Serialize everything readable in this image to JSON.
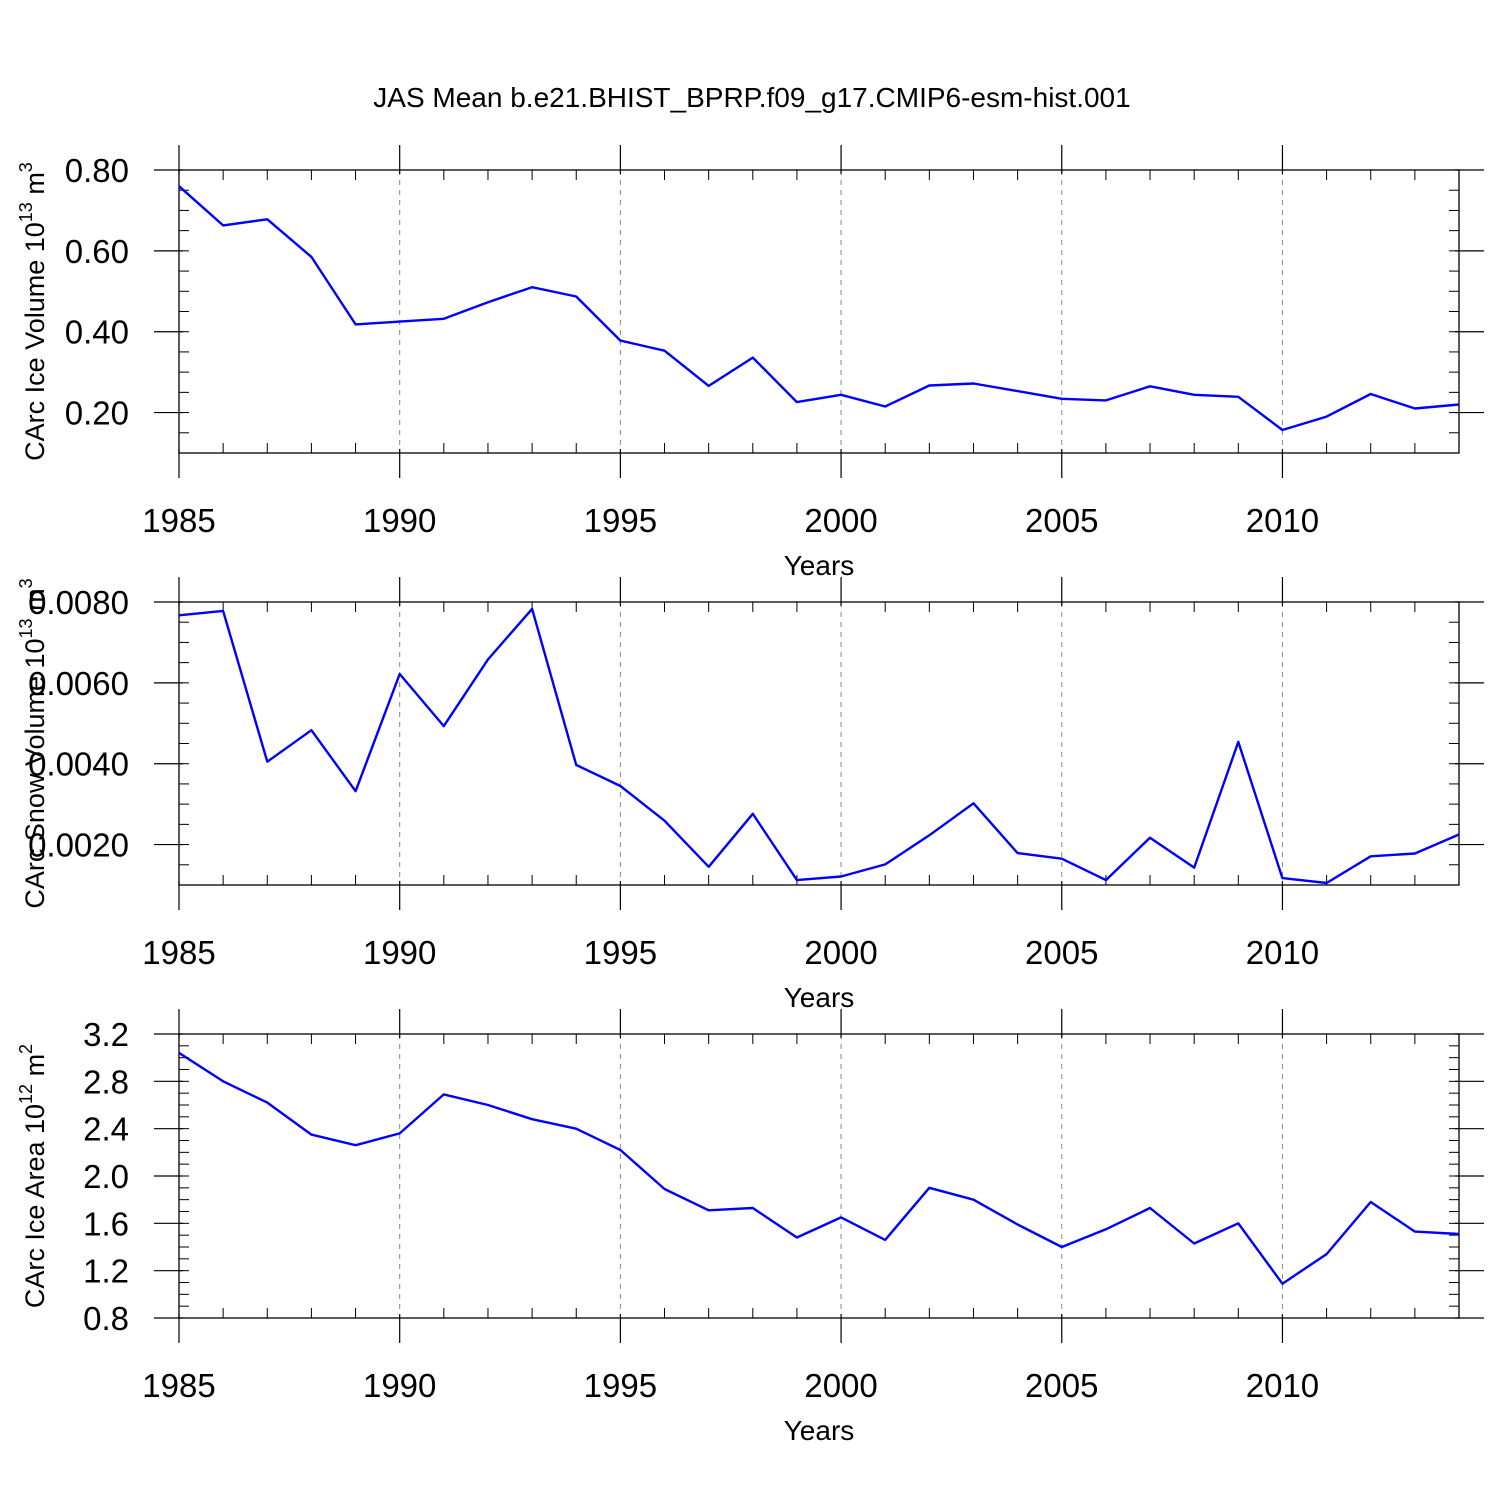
{
  "title": "JAS Mean b.e21.BHIST_BPRP.f09_g17.CMIP6-esm-hist.001",
  "colors": {
    "line": "#0000ff",
    "axis": "#000000",
    "grid": "#888888"
  },
  "chart_data": [
    {
      "type": "line",
      "id": "ice-volume",
      "ylabel": "CArc Ice Volume 10",
      "ylabel_exp": "13",
      "ylabel_unit": " m",
      "ylabel_unit_exp": "3",
      "xlabel": "Years",
      "xlim": [
        1985,
        2014
      ],
      "ylim": [
        0.1,
        0.8
      ],
      "yticks": [
        0.2,
        0.4,
        0.6,
        0.8
      ],
      "ytick_labels": [
        "0.20",
        "0.40",
        "0.60",
        "0.80"
      ],
      "xticks": [
        1985,
        1990,
        1995,
        2000,
        2005,
        2010
      ],
      "xtick_labels": [
        "1985",
        "1990",
        "1995",
        "2000",
        "2005",
        "2010"
      ],
      "x": [
        1985,
        1986,
        1987,
        1988,
        1989,
        1990,
        1991,
        1992,
        1993,
        1994,
        1995,
        1996,
        1997,
        1998,
        1999,
        2000,
        2001,
        2002,
        2003,
        2004,
        2005,
        2006,
        2007,
        2008,
        2009,
        2010,
        2011,
        2012,
        2013,
        2014
      ],
      "series": [
        {
          "name": "CArc Ice Volume",
          "values": [
            0.76,
            0.663,
            0.678,
            0.585,
            0.418,
            0.425,
            0.432,
            0.473,
            0.51,
            0.487,
            0.378,
            0.353,
            0.266,
            0.336,
            0.226,
            0.244,
            0.215,
            0.267,
            0.272,
            0.253,
            0.234,
            0.23,
            0.265,
            0.244,
            0.239,
            0.157,
            0.19,
            0.246,
            0.21,
            0.22
          ]
        }
      ]
    },
    {
      "type": "line",
      "id": "snow-volume",
      "ylabel": "CArc Snow Volume 10",
      "ylabel_exp": "13",
      "ylabel_unit": " m",
      "ylabel_unit_exp": "3",
      "xlabel": "Years",
      "xlim": [
        1985,
        2014
      ],
      "ylim": [
        0.001,
        0.008
      ],
      "yticks": [
        0.002,
        0.004,
        0.006,
        0.008
      ],
      "ytick_labels": [
        "0.0020",
        "0.0040",
        "0.0060",
        "0.0080"
      ],
      "xticks": [
        1985,
        1990,
        1995,
        2000,
        2005,
        2010
      ],
      "xtick_labels": [
        "1985",
        "1990",
        "1995",
        "2000",
        "2005",
        "2010"
      ],
      "x": [
        1985,
        1986,
        1987,
        1988,
        1989,
        1990,
        1991,
        1992,
        1993,
        1994,
        1995,
        1996,
        1997,
        1998,
        1999,
        2000,
        2001,
        2002,
        2003,
        2004,
        2005,
        2006,
        2007,
        2008,
        2009,
        2010,
        2011,
        2012,
        2013,
        2014
      ],
      "series": [
        {
          "name": "CArc Snow Volume",
          "values": [
            0.00767,
            0.00778,
            0.00405,
            0.00483,
            0.00332,
            0.00622,
            0.00493,
            0.00658,
            0.00783,
            0.00397,
            0.00345,
            0.00259,
            0.00145,
            0.00276,
            0.00112,
            0.00121,
            0.00151,
            0.00223,
            0.00302,
            0.00179,
            0.00165,
            0.00112,
            0.00217,
            0.00143,
            0.00454,
            0.00117,
            0.00105,
            0.00171,
            0.00178,
            0.00225
          ]
        }
      ]
    },
    {
      "type": "line",
      "id": "ice-area",
      "ylabel": "CArc Ice Area 10",
      "ylabel_exp": "12",
      "ylabel_unit": " m",
      "ylabel_unit_exp": "2",
      "xlabel": "Years",
      "xlim": [
        1985,
        2014
      ],
      "ylim": [
        0.8,
        3.2
      ],
      "yticks": [
        0.8,
        1.2,
        1.6,
        2.0,
        2.4,
        2.8,
        3.2
      ],
      "ytick_labels": [
        "0.8",
        "1.2",
        "1.6",
        "2.0",
        "2.4",
        "2.8",
        "3.2"
      ],
      "xticks": [
        1985,
        1990,
        1995,
        2000,
        2005,
        2010
      ],
      "xtick_labels": [
        "1985",
        "1990",
        "1995",
        "2000",
        "2005",
        "2010"
      ],
      "x": [
        1985,
        1986,
        1987,
        1988,
        1989,
        1990,
        1991,
        1992,
        1993,
        1994,
        1995,
        1996,
        1997,
        1998,
        1999,
        2000,
        2001,
        2002,
        2003,
        2004,
        2005,
        2006,
        2007,
        2008,
        2009,
        2010,
        2011,
        2012,
        2013,
        2014
      ],
      "series": [
        {
          "name": "CArc Ice Area",
          "values": [
            3.04,
            2.8,
            2.62,
            2.35,
            2.26,
            2.36,
            2.69,
            2.6,
            2.48,
            2.4,
            2.22,
            1.89,
            1.71,
            1.73,
            1.48,
            1.65,
            1.46,
            1.9,
            1.8,
            1.59,
            1.4,
            1.55,
            1.73,
            1.43,
            1.6,
            1.09,
            1.34,
            1.78,
            1.53,
            1.51
          ]
        }
      ]
    }
  ]
}
